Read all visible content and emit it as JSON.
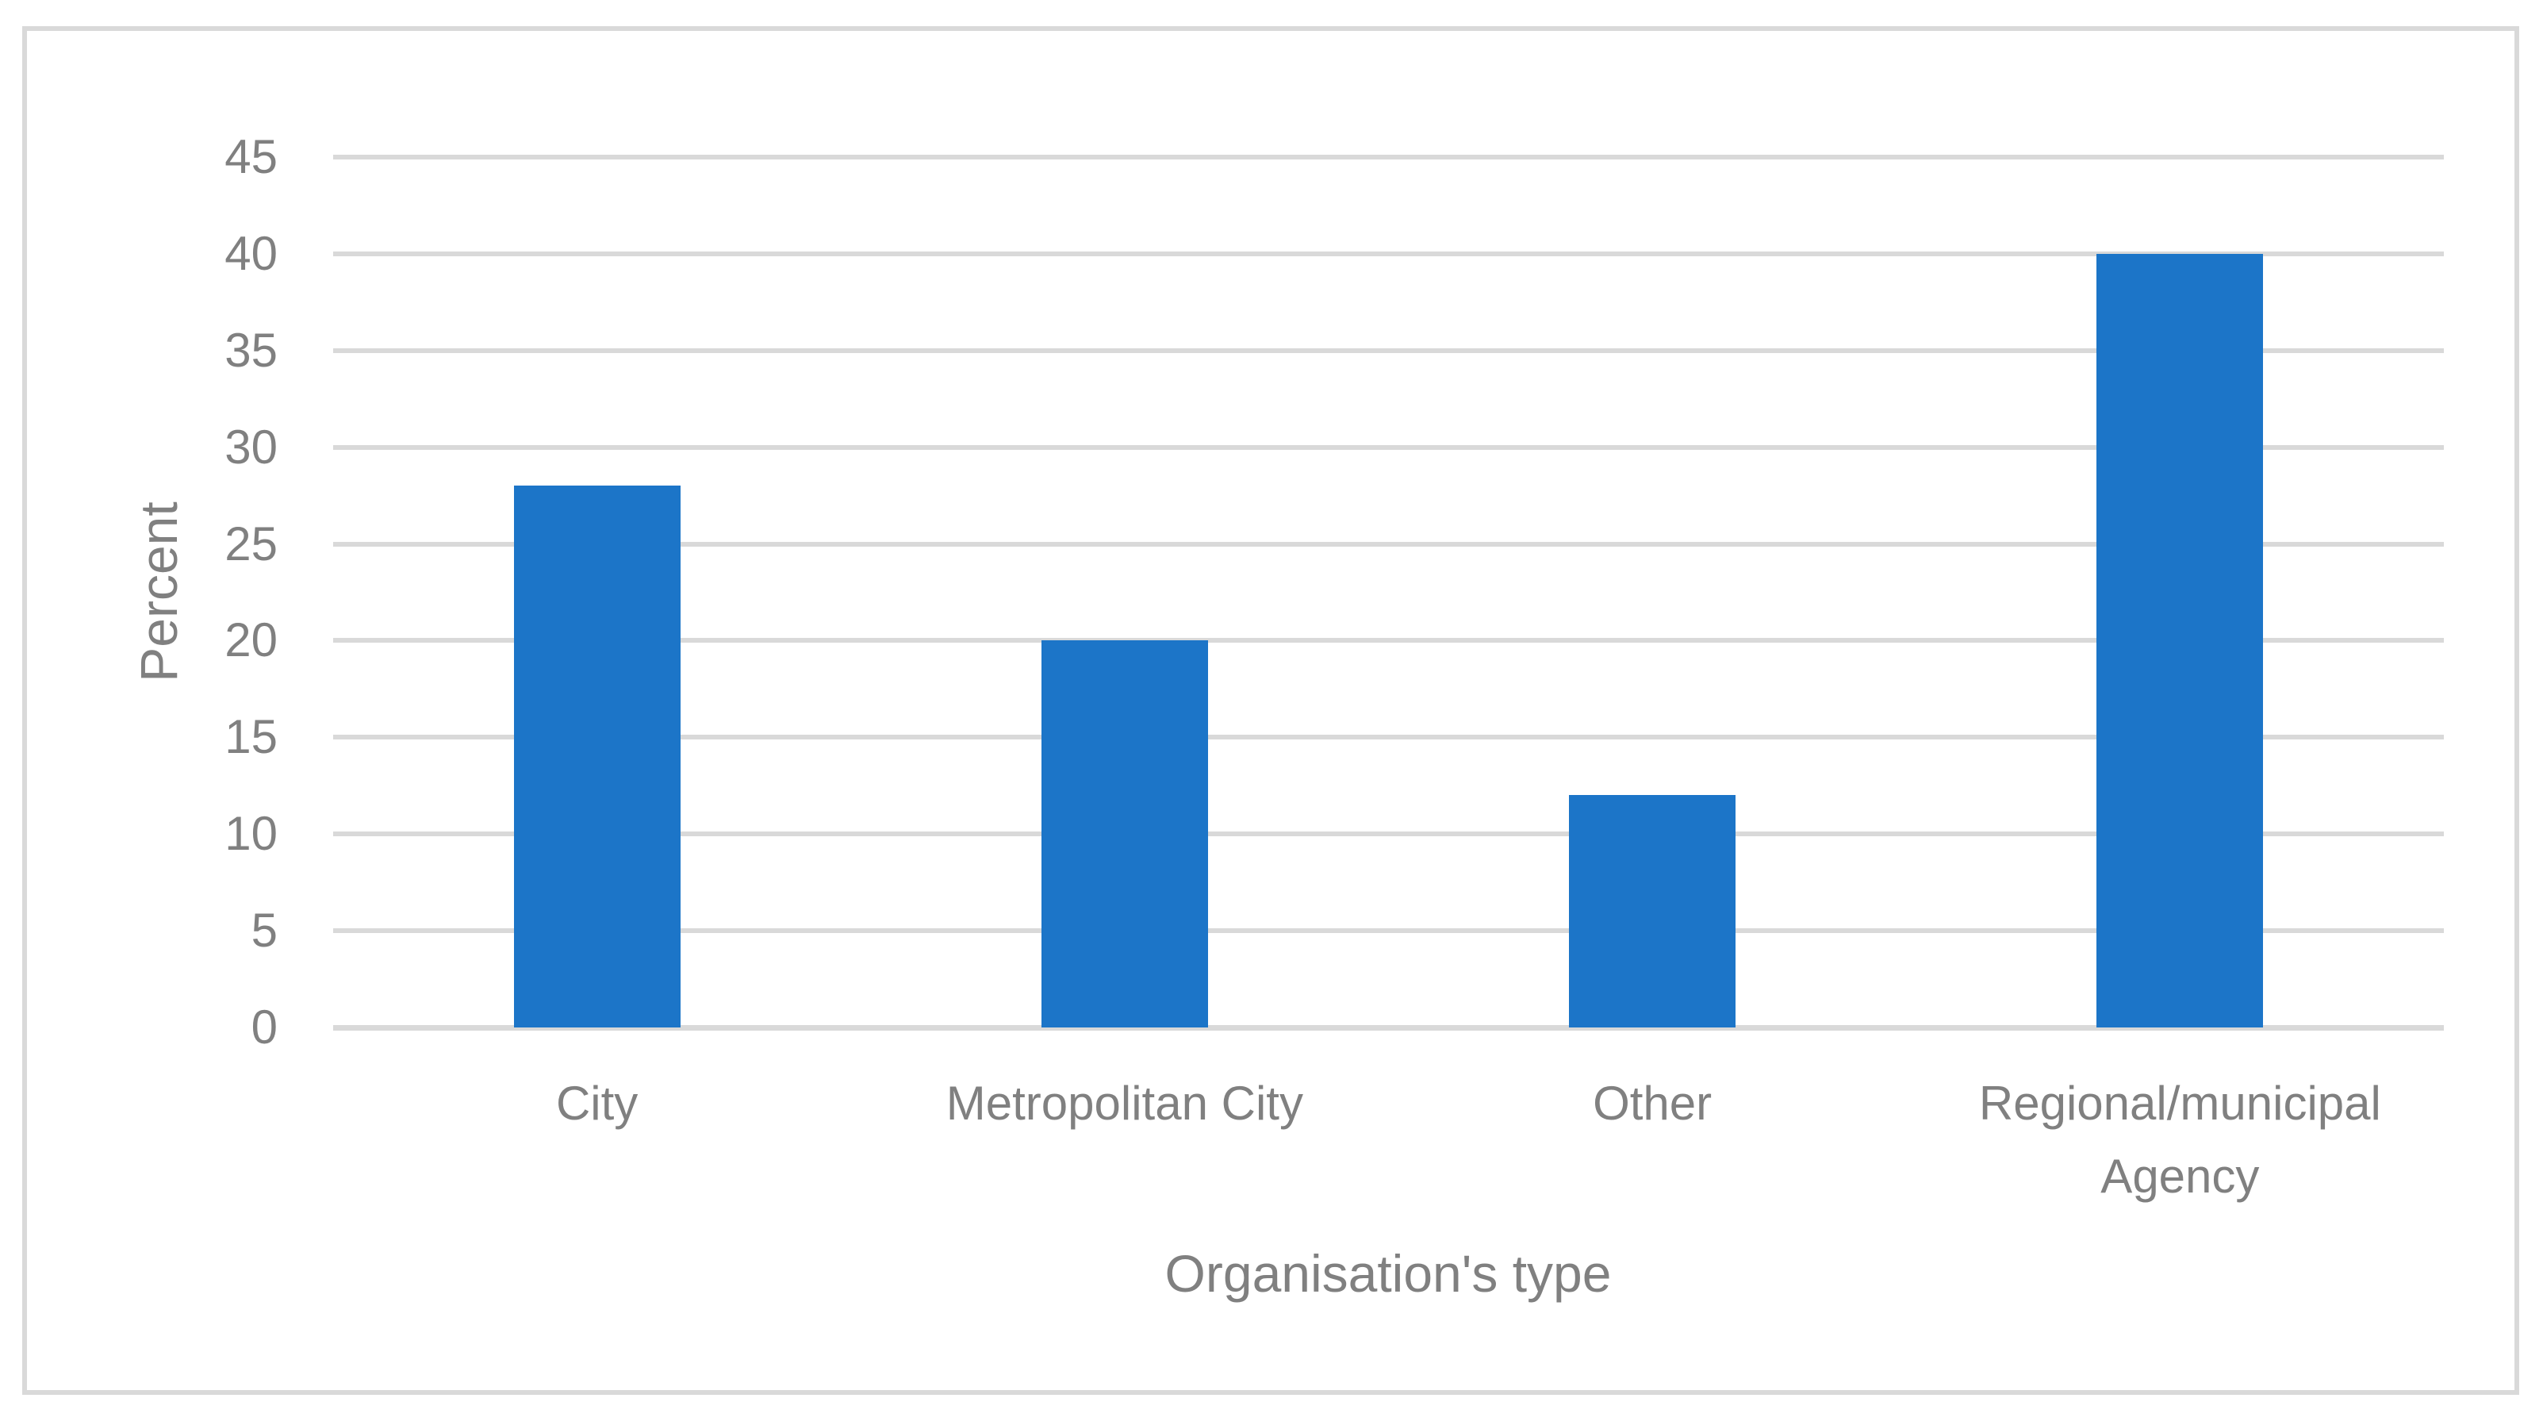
{
  "figure": {
    "background_color": "#ffffff",
    "border_color": "#d9d9d9"
  },
  "chart_data": {
    "type": "bar",
    "title": "",
    "categories": [
      "City",
      "Metropolitan City",
      "Other",
      "Regional/municipal Agency"
    ],
    "values": [
      28,
      20,
      12,
      40
    ],
    "xlabel": "Organisation's type",
    "ylabel": "Percent",
    "ylim": [
      0,
      45
    ],
    "yticks": [
      0,
      5,
      10,
      15,
      20,
      25,
      30,
      35,
      40,
      45
    ],
    "grid": true,
    "legend": false,
    "bar_color": "#1c75c8",
    "gridline_color": "#d9d9d9",
    "text_color": "#808080"
  }
}
